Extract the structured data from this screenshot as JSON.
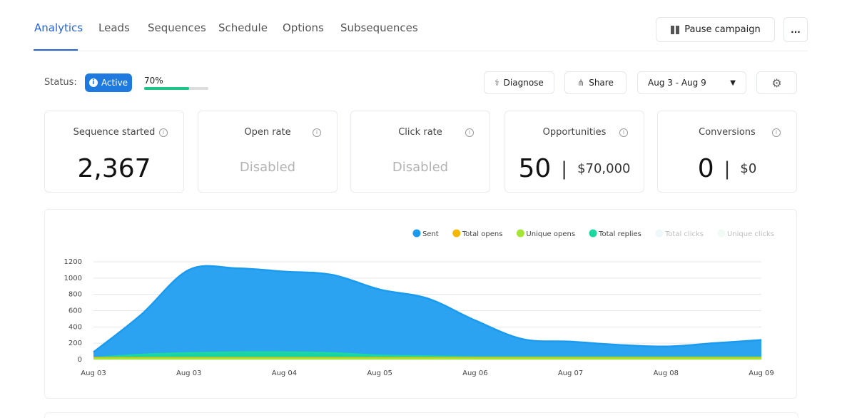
{
  "tabs": [
    "Analytics",
    "Leads",
    "Sequences",
    "Schedule",
    "Options",
    "Subsequences"
  ],
  "actions": {
    "pause": "Pause campaign",
    "more": "..."
  },
  "status": {
    "label": "Status:",
    "badge": "Active",
    "progress": "70%",
    "progress_value": 70
  },
  "toolbar": {
    "diagnose": "Diagnose",
    "share": "Share",
    "date_range": "Aug 3 - Aug 9"
  },
  "cards": [
    {
      "title": "Sequence started",
      "value": "2,367"
    },
    {
      "title": "Open rate",
      "value": "Disabled"
    },
    {
      "title": "Click rate",
      "value": "Disabled"
    },
    {
      "title": "Opportunities",
      "value": "50",
      "amount": "$70,000"
    },
    {
      "title": "Conversions",
      "value": "0",
      "amount": "$0"
    }
  ],
  "chart_data": {
    "type": "area",
    "categories": [
      "Aug 03",
      null,
      "Aug 03",
      null,
      "Aug 04",
      null,
      "Aug 05",
      null,
      "Aug 06",
      null,
      "Aug 07",
      null,
      "Aug 08",
      null,
      "Aug 09"
    ],
    "series": [
      {
        "name": "Sent",
        "color": "#1a9bf0",
        "values": [
          90,
          550,
          1100,
          1120,
          1080,
          1040,
          860,
          750,
          480,
          250,
          220,
          180,
          160,
          200,
          240
        ]
      },
      {
        "name": "Total opens",
        "color": "#f5b800",
        "values": [
          20,
          20,
          20,
          20,
          20,
          20,
          20,
          20,
          20,
          20,
          20,
          20,
          20,
          20,
          20
        ]
      },
      {
        "name": "Unique opens",
        "color": "#a3e635",
        "values": [
          10,
          10,
          10,
          10,
          10,
          10,
          10,
          10,
          10,
          10,
          10,
          10,
          10,
          10,
          10
        ]
      },
      {
        "name": "Total replies",
        "color": "#1ad8a0",
        "values": [
          20,
          60,
          80,
          90,
          90,
          80,
          50,
          40,
          30,
          30,
          30,
          30,
          30,
          30,
          30
        ]
      },
      {
        "name": "Total clicks",
        "color": "#cfeaf3",
        "visible": false
      },
      {
        "name": "Unique clicks",
        "color": "#d8f3e6",
        "visible": false
      }
    ],
    "draw_order": [
      0,
      3,
      1,
      2
    ],
    "ylim": [
      0,
      1200
    ],
    "yticks": [
      0,
      200,
      400,
      600,
      800,
      1000,
      1200
    ],
    "grid": true
  }
}
